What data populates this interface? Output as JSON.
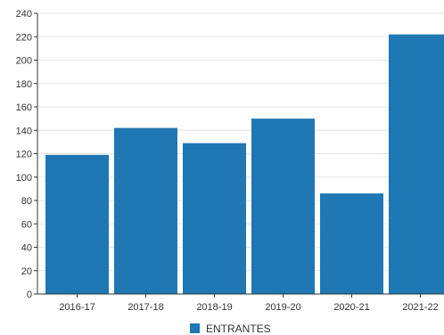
{
  "chart_data": {
    "type": "bar",
    "categories": [
      "2016-17",
      "2017-18",
      "2018-19",
      "2019-20",
      "2020-21",
      "2021-22"
    ],
    "series": [
      {
        "name": "ENTRANTES",
        "values": [
          119,
          142,
          129,
          150,
          86,
          222
        ],
        "color": "#1f77b4"
      }
    ],
    "ylim": [
      0,
      240
    ],
    "yticks": [
      0,
      20,
      40,
      60,
      80,
      100,
      120,
      140,
      160,
      180,
      200,
      220,
      240
    ],
    "grid": true,
    "legend": "bottom-center"
  },
  "colors": {
    "bar": "#1f77b4",
    "grid": "#e6e6e6",
    "axis": "#333333"
  }
}
